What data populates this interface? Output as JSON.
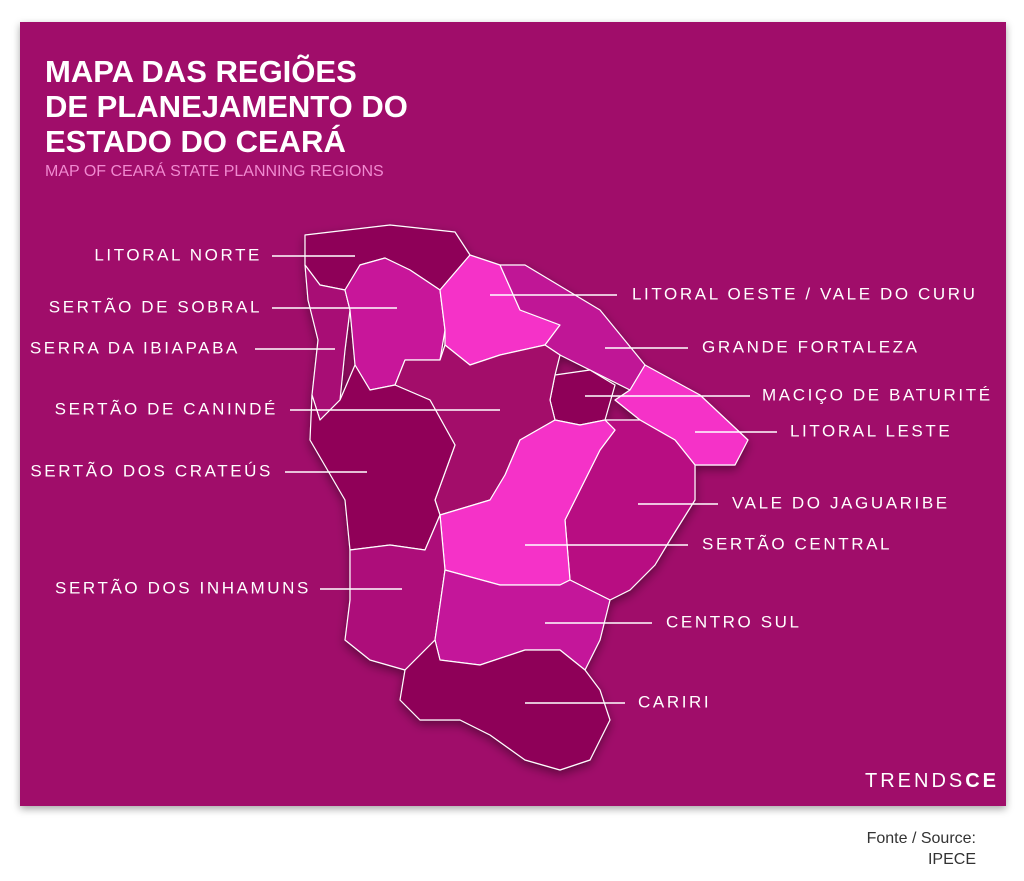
{
  "header": {
    "title_lines": [
      "MAPA DAS REGIÕES",
      "DE PLANEJAMENTO DO",
      "ESTADO DO CEARÁ"
    ],
    "subtitle": "MAP OF CEARÁ STATE PLANNING REGIONS"
  },
  "regions": [
    {
      "label": "LITORAL NORTE"
    },
    {
      "label": "SERTÃO DE SOBRAL"
    },
    {
      "label": "SERRA DA IBIAPABA"
    },
    {
      "label": "SERTÃO DE CANINDÉ"
    },
    {
      "label": "SERTÃO DOS CRATEÚS"
    },
    {
      "label": "SERTÃO DOS INHAMUNS"
    },
    {
      "label": "LITORAL OESTE / VALE DO CURU"
    },
    {
      "label": "GRANDE FORTALEZA"
    },
    {
      "label": "MACIÇO DE BATURITÉ"
    },
    {
      "label": "LITORAL LESTE"
    },
    {
      "label": "VALE DO JAGUARIBE"
    },
    {
      "label": "SERTÃO CENTRAL"
    },
    {
      "label": "CENTRO SUL"
    },
    {
      "label": "CARIRI"
    }
  ],
  "logo": {
    "prefix": "TRENDS",
    "suffix": "CE"
  },
  "source": {
    "label": "Fonte / Source:",
    "name": "IPECE"
  }
}
